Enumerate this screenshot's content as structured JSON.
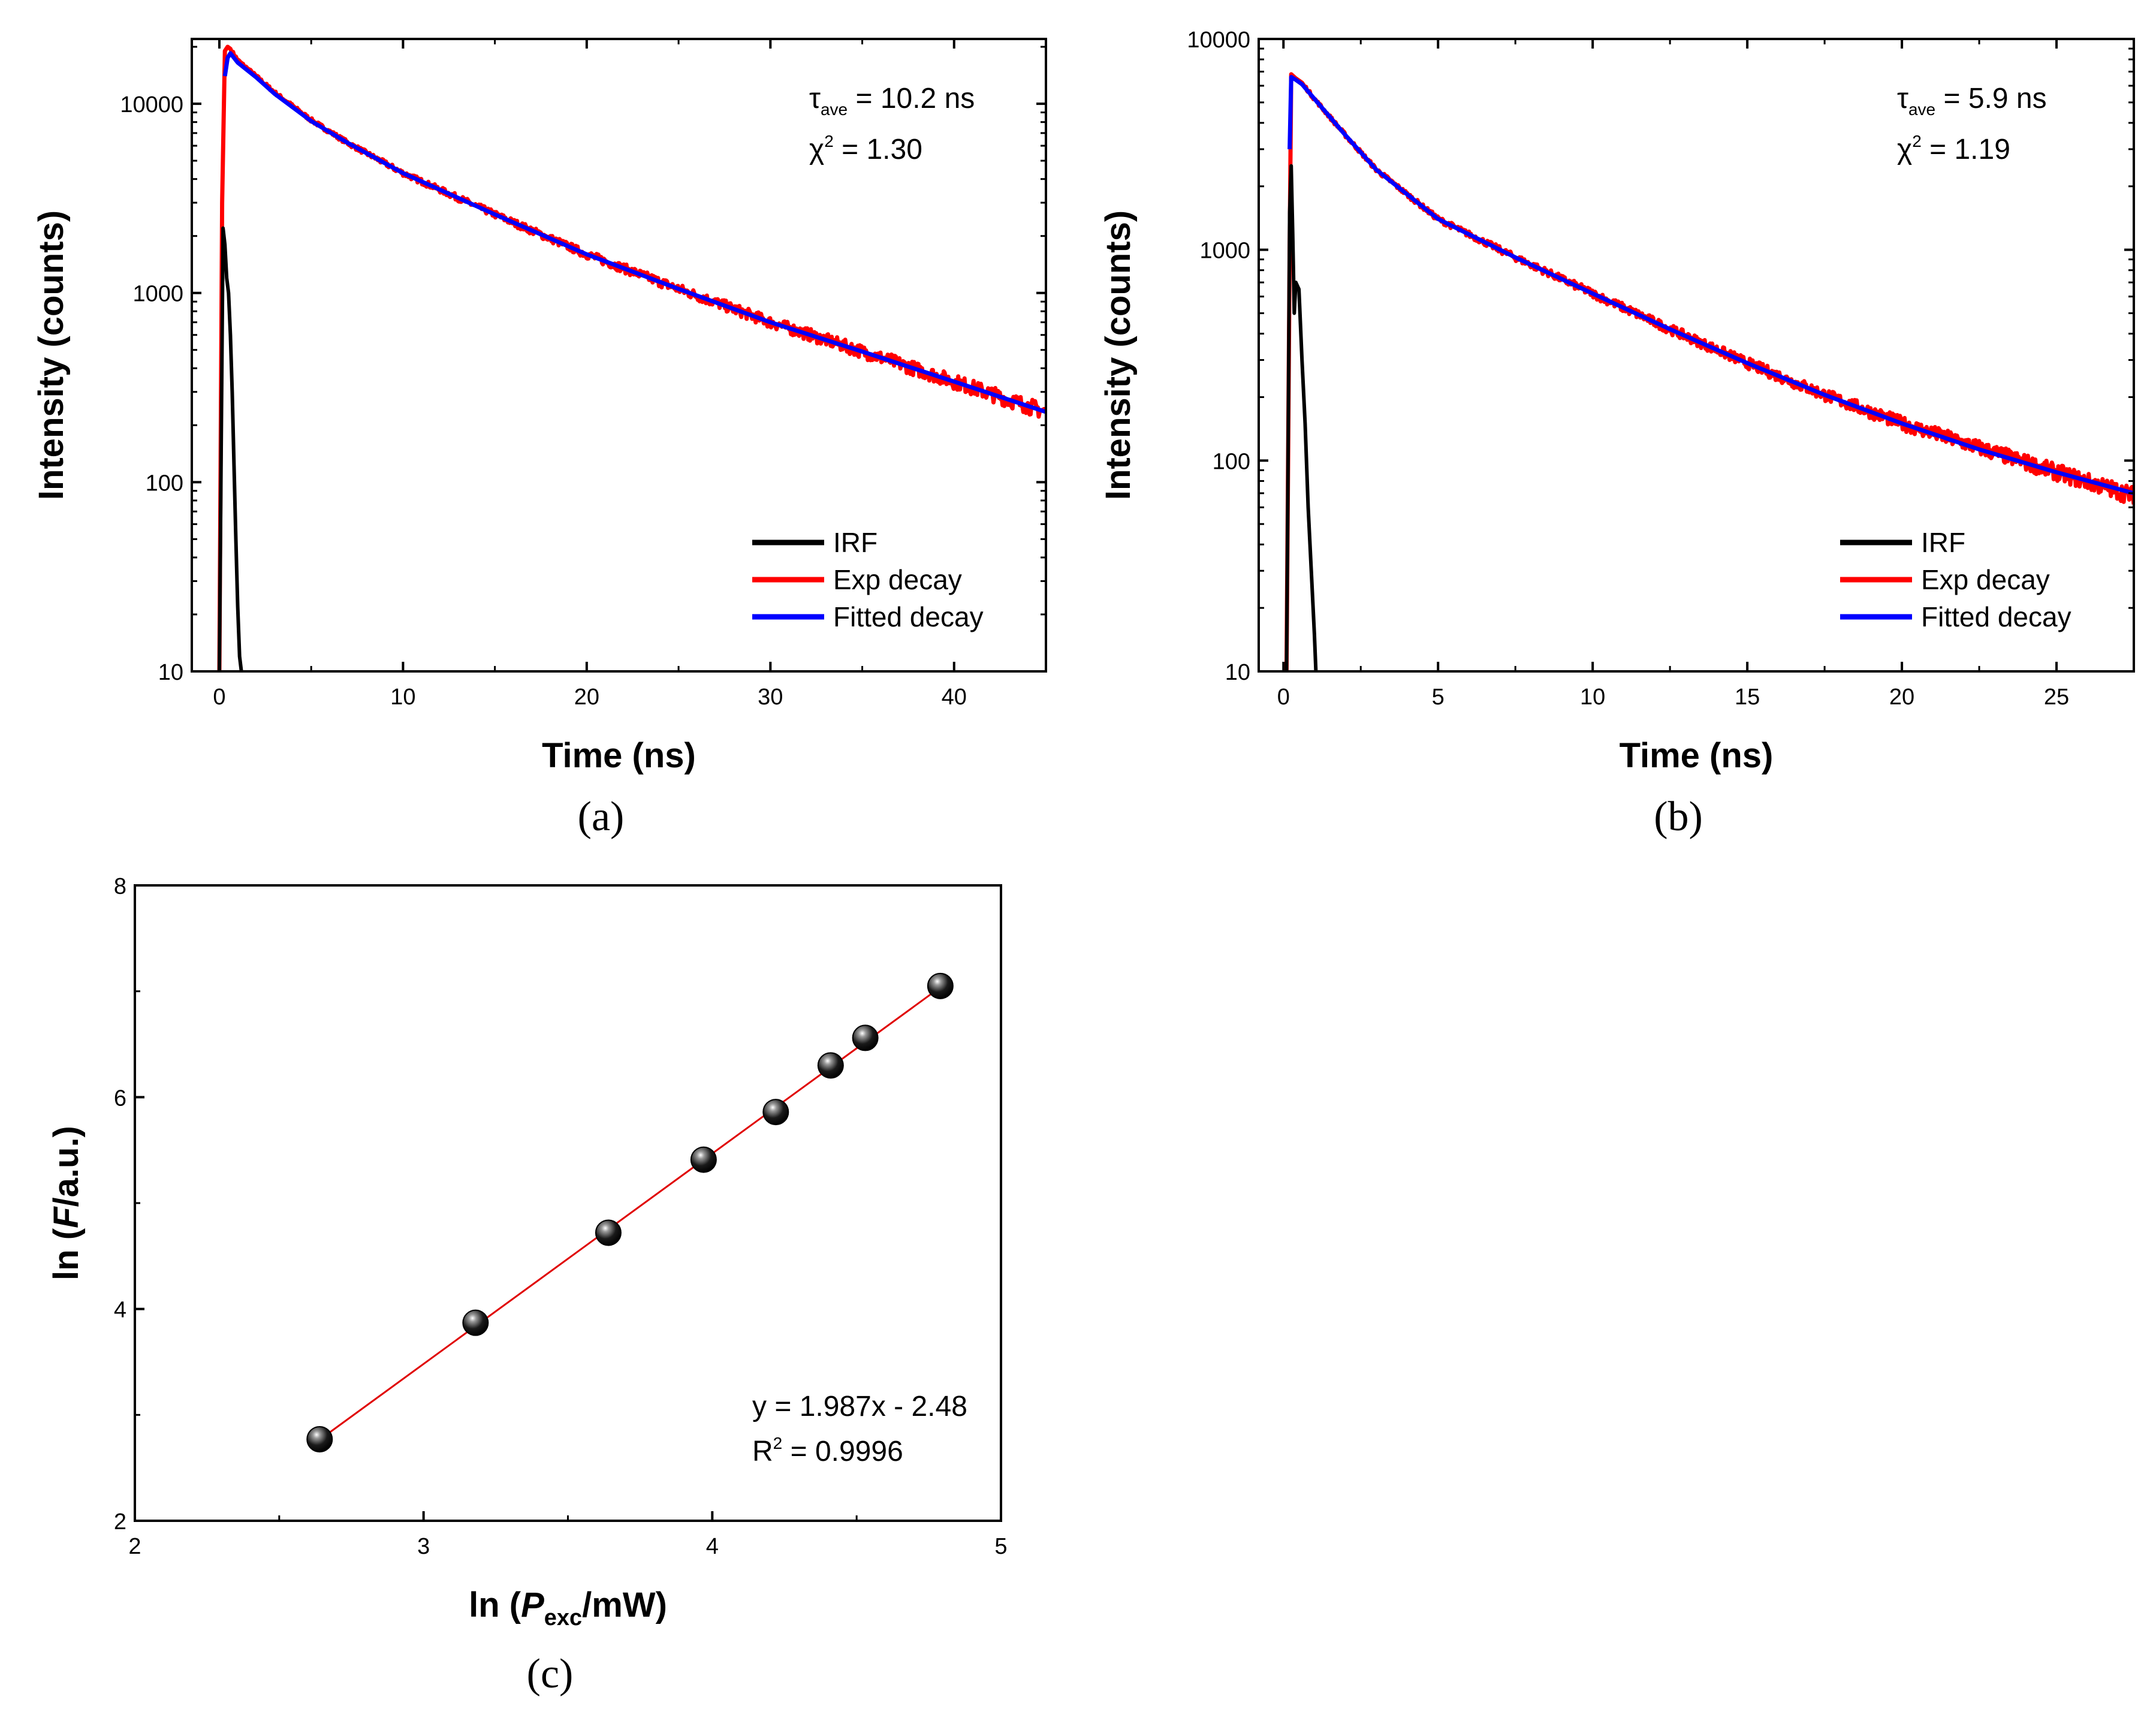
{
  "figure": {
    "captions": {
      "a": "(a)",
      "b": "(b)",
      "c": "(c)"
    }
  },
  "colors": {
    "irf": "#000000",
    "exp": "#ff0000",
    "fit": "#0000ff",
    "fit_line": "#e00000",
    "marker": "#000000"
  },
  "chart_data": [
    {
      "id": "a",
      "type": "line",
      "yscale": "log",
      "title": "",
      "xlabel": "Time (ns)",
      "ylabel": "Intensity (counts)",
      "xlim": [
        -1.5,
        45
      ],
      "ylim": [
        10,
        22000
      ],
      "xticks": [
        0,
        10,
        20,
        30,
        40
      ],
      "xtick_labels": [
        "0",
        "10",
        "20",
        "30",
        "40"
      ],
      "yticks": [
        10,
        100,
        1000,
        10000
      ],
      "ytick_labels": [
        "10",
        "100",
        "1000",
        "10000"
      ],
      "annotation": {
        "tau_symbol": "τ",
        "tau_sub": "ave",
        "tau_value": " = 10.2 ns",
        "chi_symbol": "χ",
        "chi_sup": "2",
        "chi_value": " = 1.30"
      },
      "legend": [
        "IRF",
        "Exp decay",
        "Fitted decay"
      ],
      "legend_position": "bottom-right",
      "series": [
        {
          "name": "IRF",
          "x": [
            0.0,
            0.1,
            0.2,
            0.3,
            0.4,
            0.5,
            0.6,
            0.7,
            0.8,
            0.9,
            1.0,
            1.1,
            1.2
          ],
          "y": [
            10,
            150,
            2200,
            1800,
            1200,
            1000,
            600,
            300,
            120,
            50,
            22,
            12,
            10
          ]
        },
        {
          "name": "Exp decay",
          "x": [
            0.0,
            0.15,
            0.3,
            0.45,
            0.6,
            1,
            2,
            3,
            5,
            7,
            10,
            15,
            20,
            25,
            30,
            35,
            40,
            45
          ],
          "y": [
            10,
            3000,
            19000,
            20000,
            19500,
            17000,
            14000,
            11500,
            8200,
            6200,
            4300,
            2600,
            1600,
            1050,
            700,
            490,
            340,
            235
          ]
        },
        {
          "name": "Fitted decay",
          "x": [
            0.3,
            0.45,
            0.6,
            1,
            2,
            3,
            5,
            7,
            10,
            15,
            20,
            25,
            30,
            35,
            40,
            45
          ],
          "y": [
            14000,
            17500,
            18500,
            16500,
            13800,
            11300,
            8100,
            6200,
            4300,
            2600,
            1600,
            1050,
            700,
            490,
            340,
            235
          ]
        }
      ]
    },
    {
      "id": "b",
      "type": "line",
      "yscale": "log",
      "title": "",
      "xlabel": "Time (ns)",
      "ylabel": "Intensity (counts)",
      "xlim": [
        -0.8,
        27.5
      ],
      "ylim": [
        10,
        10000
      ],
      "xticks": [
        0,
        5,
        10,
        15,
        20,
        25
      ],
      "xtick_labels": [
        "0",
        "5",
        "10",
        "15",
        "20",
        "25"
      ],
      "yticks": [
        10,
        100,
        1000,
        10000
      ],
      "ytick_labels": [
        "10",
        "100",
        "1000",
        "10000"
      ],
      "annotation": {
        "tau_symbol": "τ",
        "tau_sub": "ave",
        "tau_value": " = 5.9 ns",
        "chi_symbol": "χ",
        "chi_sup": "2",
        "chi_value": " = 1.19"
      },
      "legend": [
        "IRF",
        "Exp decay",
        "Fitted decay"
      ],
      "legend_position": "bottom-right",
      "series": [
        {
          "name": "IRF",
          "x": [
            0.1,
            0.15,
            0.2,
            0.25,
            0.3,
            0.35,
            0.4,
            0.5,
            0.6,
            0.7,
            0.8,
            0.9,
            1.0,
            1.05
          ],
          "y": [
            10,
            100,
            1500,
            2500,
            1200,
            500,
            700,
            650,
            300,
            150,
            60,
            30,
            15,
            10
          ]
        },
        {
          "name": "Exp decay",
          "x": [
            0.1,
            0.2,
            0.25,
            0.4,
            0.6,
            1,
            2,
            3,
            5,
            7.5,
            10,
            12.5,
            15,
            17.5,
            20,
            22.5,
            25,
            27.5
          ],
          "y": [
            10,
            1000,
            6800,
            6500,
            6200,
            5200,
            3500,
            2400,
            1400,
            920,
            620,
            420,
            290,
            205,
            150,
            115,
            88,
            68
          ]
        },
        {
          "name": "Fitted decay",
          "x": [
            0.2,
            0.25,
            0.4,
            0.6,
            1,
            2,
            3,
            5,
            7.5,
            10,
            12.5,
            15,
            17.5,
            20,
            22.5,
            25,
            27.5
          ],
          "y": [
            3000,
            6600,
            6400,
            6100,
            5200,
            3500,
            2400,
            1400,
            920,
            620,
            420,
            290,
            205,
            150,
            113,
            88,
            70
          ]
        }
      ]
    },
    {
      "id": "c",
      "type": "scatter",
      "title": "",
      "xlabel": {
        "pre": "ln (",
        "var": "P",
        "sub": "exc",
        "post": "/mW)"
      },
      "ylabel": {
        "pre": "ln (",
        "var": "F",
        "post": "/a.u.)"
      },
      "xlim": [
        2,
        5
      ],
      "ylim": [
        2,
        8
      ],
      "xticks": [
        2,
        3,
        4,
        5
      ],
      "xtick_labels": [
        "2",
        "3",
        "4",
        "5"
      ],
      "yticks": [
        2,
        4,
        6,
        8
      ],
      "ytick_labels": [
        "2",
        "4",
        "6",
        "8"
      ],
      "points": [
        {
          "x": 2.64,
          "y": 2.77
        },
        {
          "x": 3.18,
          "y": 3.87
        },
        {
          "x": 3.64,
          "y": 4.72
        },
        {
          "x": 3.97,
          "y": 5.41
        },
        {
          "x": 4.22,
          "y": 5.86
        },
        {
          "x": 4.41,
          "y": 6.3
        },
        {
          "x": 4.53,
          "y": 6.56
        },
        {
          "x": 4.79,
          "y": 7.05
        }
      ],
      "fit": {
        "slope": 1.987,
        "intercept": -2.48,
        "x_range": [
          2.64,
          4.79
        ]
      },
      "equation_text": "y = 1.987x - 2.48",
      "r2": {
        "label": "R",
        "sup": "2",
        "value": " = 0.9996"
      }
    }
  ]
}
